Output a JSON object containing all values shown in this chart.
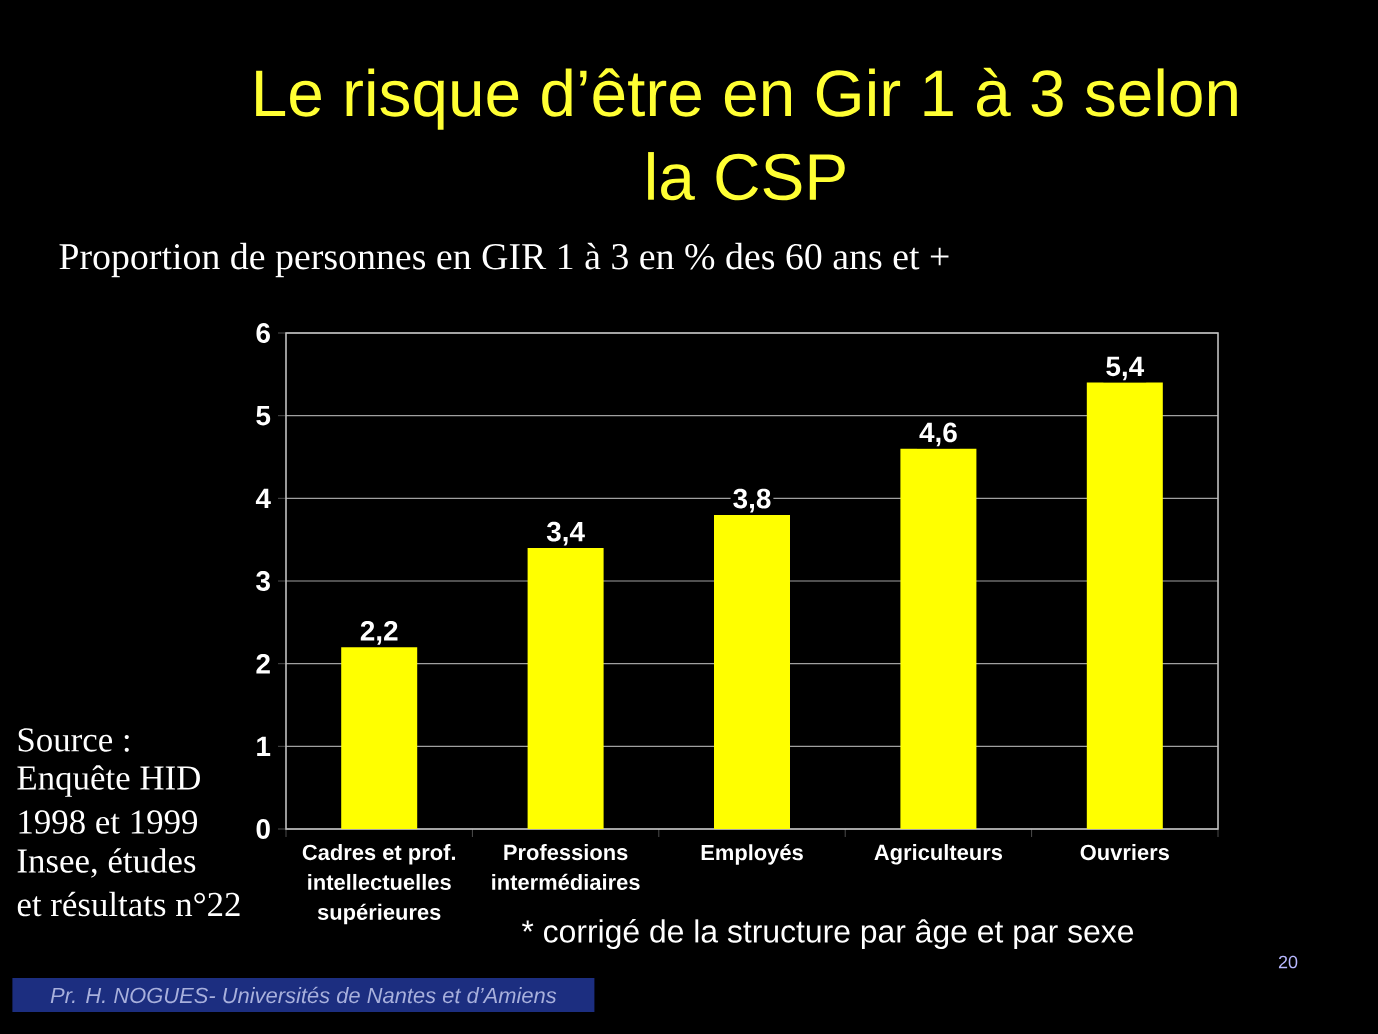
{
  "chart_data": {
    "type": "bar",
    "title": "Le risque d’être en Gir 1 à 3 selon la CSP",
    "subtitle": "Proportion de personnes en GIR 1 à 3 en % des 60 ans et +",
    "categories": [
      "Cadres et prof. intellectuelles supérieures",
      "Professions intermédiaires",
      "Employés",
      "Agriculteurs",
      "Ouvriers"
    ],
    "values": [
      2.2,
      3.4,
      3.8,
      4.6,
      5.4
    ],
    "value_labels": [
      "2,2",
      "3,4",
      "3,8",
      "4,6",
      "5,4"
    ],
    "color": "#ffff00",
    "ylim": [
      0,
      6
    ],
    "yticks": [
      0,
      1,
      2,
      3,
      4,
      5,
      6
    ],
    "grid": "y",
    "annotations": [
      "Source :",
      "Enquête HID",
      "1998 et 1999",
      "Insee, études",
      "et résultats n°22",
      "* corrigé de la structure par âge et par sexe",
      "20",
      "Pr. H. NOGUES- Universités de Nantes et d’Amiens"
    ]
  }
}
